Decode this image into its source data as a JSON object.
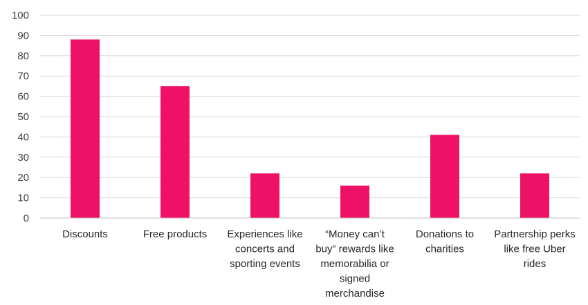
{
  "chart_data": {
    "type": "bar",
    "categories": [
      [
        "Discounts"
      ],
      [
        "Free products"
      ],
      [
        "Experiences like",
        "concerts and",
        "sporting events"
      ],
      [
        "“Money can’t",
        "buy” rewards like",
        "memorabilia or",
        "signed",
        "merchandise"
      ],
      [
        "Donations to",
        "charities"
      ],
      [
        "Partnership perks",
        "like free Uber",
        "rides"
      ]
    ],
    "values": [
      88,
      65,
      22,
      16,
      41,
      22
    ],
    "ylim": [
      0,
      100
    ],
    "yticks": [
      "0",
      "10",
      "20",
      "30",
      "40",
      "50",
      "60",
      "70",
      "80",
      "90",
      "100"
    ],
    "grid": true,
    "bar_color": "#ee1166",
    "title": "",
    "xlabel": "",
    "ylabel": ""
  }
}
